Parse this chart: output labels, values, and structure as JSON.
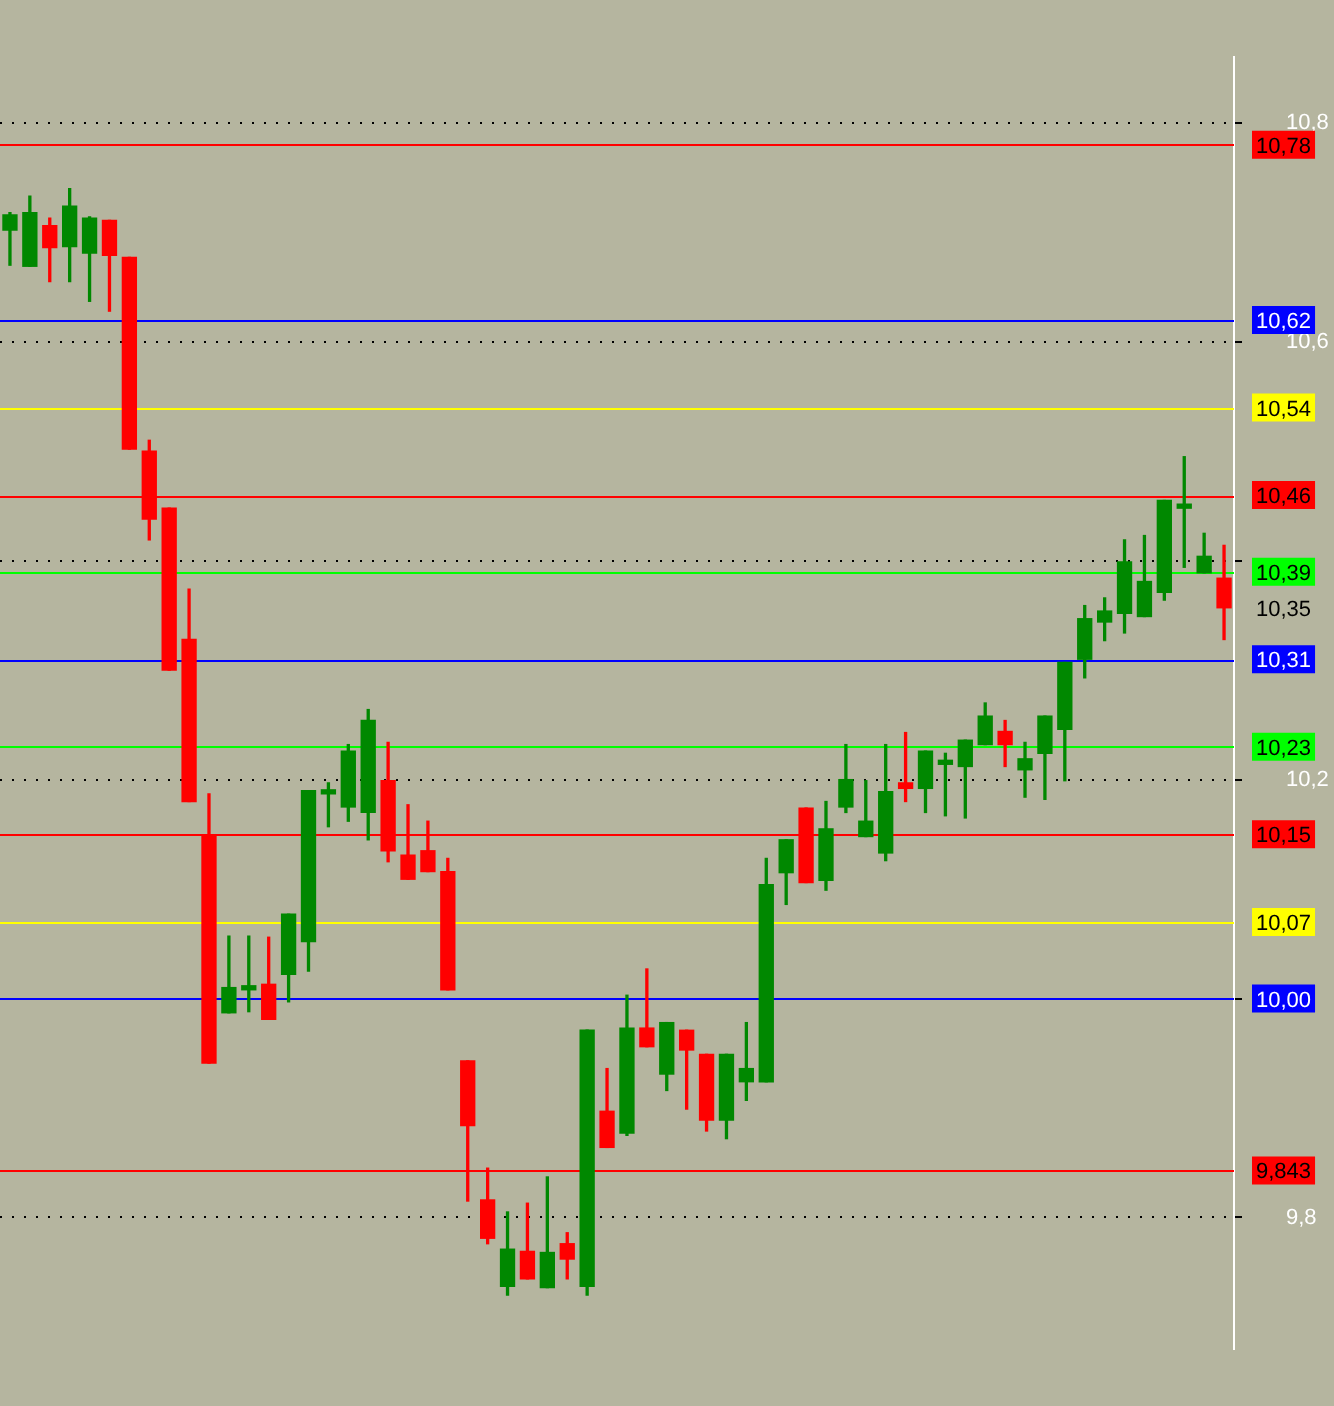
{
  "chart_data": {
    "type": "candlestick",
    "categories": [
      null,
      null,
      null,
      null,
      null,
      null,
      null,
      null,
      null,
      null,
      null,
      null,
      null,
      null,
      null,
      null,
      null,
      null,
      null,
      null,
      null,
      null,
      null,
      null,
      null,
      null,
      null,
      null,
      null,
      null,
      null,
      null,
      null,
      null,
      null,
      null,
      null,
      null,
      null,
      null,
      null,
      null,
      null,
      null,
      null,
      null,
      null,
      null,
      null,
      null,
      null,
      null,
      null,
      null,
      null,
      null,
      null,
      null,
      null,
      null,
      null,
      null
    ],
    "ohlc": [
      [
        10.702,
        10.718,
        10.67,
        10.716
      ],
      [
        10.669,
        10.733,
        10.669,
        10.718
      ],
      [
        10.706,
        10.713,
        10.655,
        10.686
      ],
      [
        10.687,
        10.74,
        10.655,
        10.724
      ],
      [
        10.681,
        10.714,
        10.637,
        10.713
      ],
      [
        10.711,
        10.711,
        10.628,
        10.679
      ],
      [
        10.677,
        10.677,
        10.502,
        10.502
      ],
      [
        10.5,
        10.51,
        10.419,
        10.438
      ],
      [
        10.448,
        10.448,
        10.3,
        10.3
      ],
      [
        10.328,
        10.374,
        10.18,
        10.18
      ],
      [
        10.148,
        10.187,
        9.941,
        9.941
      ],
      [
        9.987,
        10.057,
        9.987,
        10.01
      ],
      [
        10.008,
        10.057,
        9.988,
        10.01
      ],
      [
        10.013,
        10.056,
        9.981,
        9.981
      ],
      [
        10.022,
        10.077,
        9.997,
        10.077
      ],
      [
        10.052,
        10.19,
        10.025,
        10.19
      ],
      [
        10.187,
        10.197,
        10.157,
        10.19
      ],
      [
        10.175,
        10.232,
        10.162,
        10.226
      ],
      [
        10.17,
        10.264,
        10.145,
        10.254
      ],
      [
        10.199,
        10.234,
        10.125,
        10.135
      ],
      [
        10.131,
        10.177,
        10.109,
        10.109
      ],
      [
        10.135,
        10.162,
        10.116,
        10.116
      ],
      [
        10.116,
        10.128,
        10.008,
        10.008
      ],
      [
        9.943,
        9.943,
        9.815,
        9.884
      ],
      [
        9.816,
        9.845,
        9.776,
        9.781
      ],
      [
        9.737,
        9.805,
        9.729,
        9.771
      ],
      [
        9.769,
        9.813,
        9.744,
        9.744
      ],
      [
        9.736,
        9.837,
        9.736,
        9.768
      ],
      [
        9.776,
        9.786,
        9.744,
        9.762
      ],
      [
        9.737,
        9.971,
        9.729,
        9.971
      ],
      [
        9.897,
        9.936,
        9.864,
        9.864
      ],
      [
        9.877,
        10.003,
        9.875,
        9.973
      ],
      [
        9.973,
        10.027,
        9.956,
        9.956
      ],
      [
        9.931,
        9.978,
        9.916,
        9.978
      ],
      [
        9.971,
        9.971,
        9.899,
        9.953
      ],
      [
        9.949,
        9.949,
        9.879,
        9.889
      ],
      [
        9.889,
        9.949,
        9.872,
        9.949
      ],
      [
        9.924,
        9.978,
        9.907,
        9.936
      ],
      [
        9.924,
        10.128,
        9.924,
        10.104
      ],
      [
        10.115,
        10.145,
        10.086,
        10.145
      ],
      [
        10.174,
        10.174,
        10.106,
        10.106
      ],
      [
        10.108,
        10.18,
        10.099,
        10.155
      ],
      [
        10.175,
        10.232,
        10.17,
        10.2
      ],
      [
        10.148,
        10.199,
        10.148,
        10.162
      ],
      [
        10.133,
        10.232,
        10.126,
        10.189
      ],
      [
        10.197,
        10.243,
        10.18,
        10.192
      ],
      [
        10.192,
        10.226,
        10.17,
        10.226
      ],
      [
        10.214,
        10.224,
        10.167,
        10.217
      ],
      [
        10.212,
        10.236,
        10.165,
        10.236
      ],
      [
        10.232,
        10.27,
        10.232,
        10.258
      ],
      [
        10.244,
        10.254,
        10.212,
        10.232
      ],
      [
        10.209,
        10.234,
        10.184,
        10.219
      ],
      [
        10.224,
        10.258,
        10.182,
        10.258
      ],
      [
        10.246,
        10.307,
        10.199,
        10.307
      ],
      [
        10.31,
        10.359,
        10.293,
        10.347
      ],
      [
        10.344,
        10.366,
        10.327,
        10.354
      ],
      [
        10.352,
        10.419,
        10.334,
        10.399
      ],
      [
        10.349,
        10.423,
        10.349,
        10.381
      ],
      [
        10.371,
        10.455,
        10.364,
        10.455
      ],
      [
        10.448,
        10.495,
        10.394,
        10.45
      ],
      [
        10.389,
        10.425,
        10.389,
        10.404
      ],
      [
        10.384,
        10.414,
        10.328,
        10.357
      ]
    ],
    "colors": [
      "#008800",
      "#008800",
      "#ff0000",
      "#008800",
      "#008800",
      "#ff0000",
      "#ff0000",
      "#ff0000",
      "#ff0000",
      "#ff0000",
      "#ff0000",
      "#008800",
      "#008800",
      "#ff0000",
      "#008800",
      "#008800",
      "#008800",
      "#008800",
      "#008800",
      "#ff0000",
      "#ff0000",
      "#ff0000",
      "#ff0000",
      "#ff0000",
      "#ff0000",
      "#008800",
      "#ff0000",
      "#008800",
      "#ff0000",
      "#008800",
      "#ff0000",
      "#008800",
      "#ff0000",
      "#008800",
      "#ff0000",
      "#ff0000",
      "#008800",
      "#008800",
      "#008800",
      "#008800",
      "#ff0000",
      "#008800",
      "#008800",
      "#008800",
      "#008800",
      "#ff0000",
      "#008800",
      "#008800",
      "#008800",
      "#008800",
      "#ff0000",
      "#008800",
      "#008800",
      "#008800",
      "#008800",
      "#008800",
      "#008800",
      "#008800",
      "#008800",
      "#008800",
      "#008800",
      "#ff0000"
    ],
    "ylim": [
      9.68,
      10.86
    ],
    "yticks": [
      {
        "value": 9.8,
        "label": "9,8"
      },
      {
        "value": 10.0,
        "label": null
      },
      {
        "value": 10.2,
        "label": "10,2"
      },
      {
        "value": 10.4,
        "label": null
      },
      {
        "value": 10.6,
        "label": "10,6"
      },
      {
        "value": 10.8,
        "label": "10,8"
      }
    ],
    "grid": "y",
    "tick_labels": "y",
    "ref_lines": [
      {
        "axis": "y",
        "value": 10.78,
        "label": "10,78",
        "color": "#ff0000"
      },
      {
        "axis": "y",
        "value": 10.62,
        "label": "10,62",
        "color": "#0000ff"
      },
      {
        "axis": "y",
        "value": 10.54,
        "label": "10,54",
        "color": "#ffff00"
      },
      {
        "axis": "y",
        "value": 10.46,
        "label": "10,46",
        "color": "#ff0000"
      },
      {
        "axis": "y",
        "value": 10.39,
        "label": "10,39",
        "color": "#00ff00"
      },
      {
        "axis": "y",
        "value": 10.31,
        "label": "10,31",
        "color": "#0000ff"
      },
      {
        "axis": "y",
        "value": 10.23,
        "label": "10,23",
        "color": "#00ff00"
      },
      {
        "axis": "y",
        "value": 10.15,
        "label": "10,15",
        "color": "#ff0000"
      },
      {
        "axis": "y",
        "value": 10.07,
        "label": "10,07",
        "color": "#ffff00"
      },
      {
        "axis": "y",
        "value": 10.0,
        "label": "10,00",
        "color": "#0000ff"
      },
      {
        "axis": "y",
        "value": 9.843,
        "label": "9,843",
        "color": "#ff0000"
      }
    ],
    "annotations": [
      "10,35"
    ]
  }
}
